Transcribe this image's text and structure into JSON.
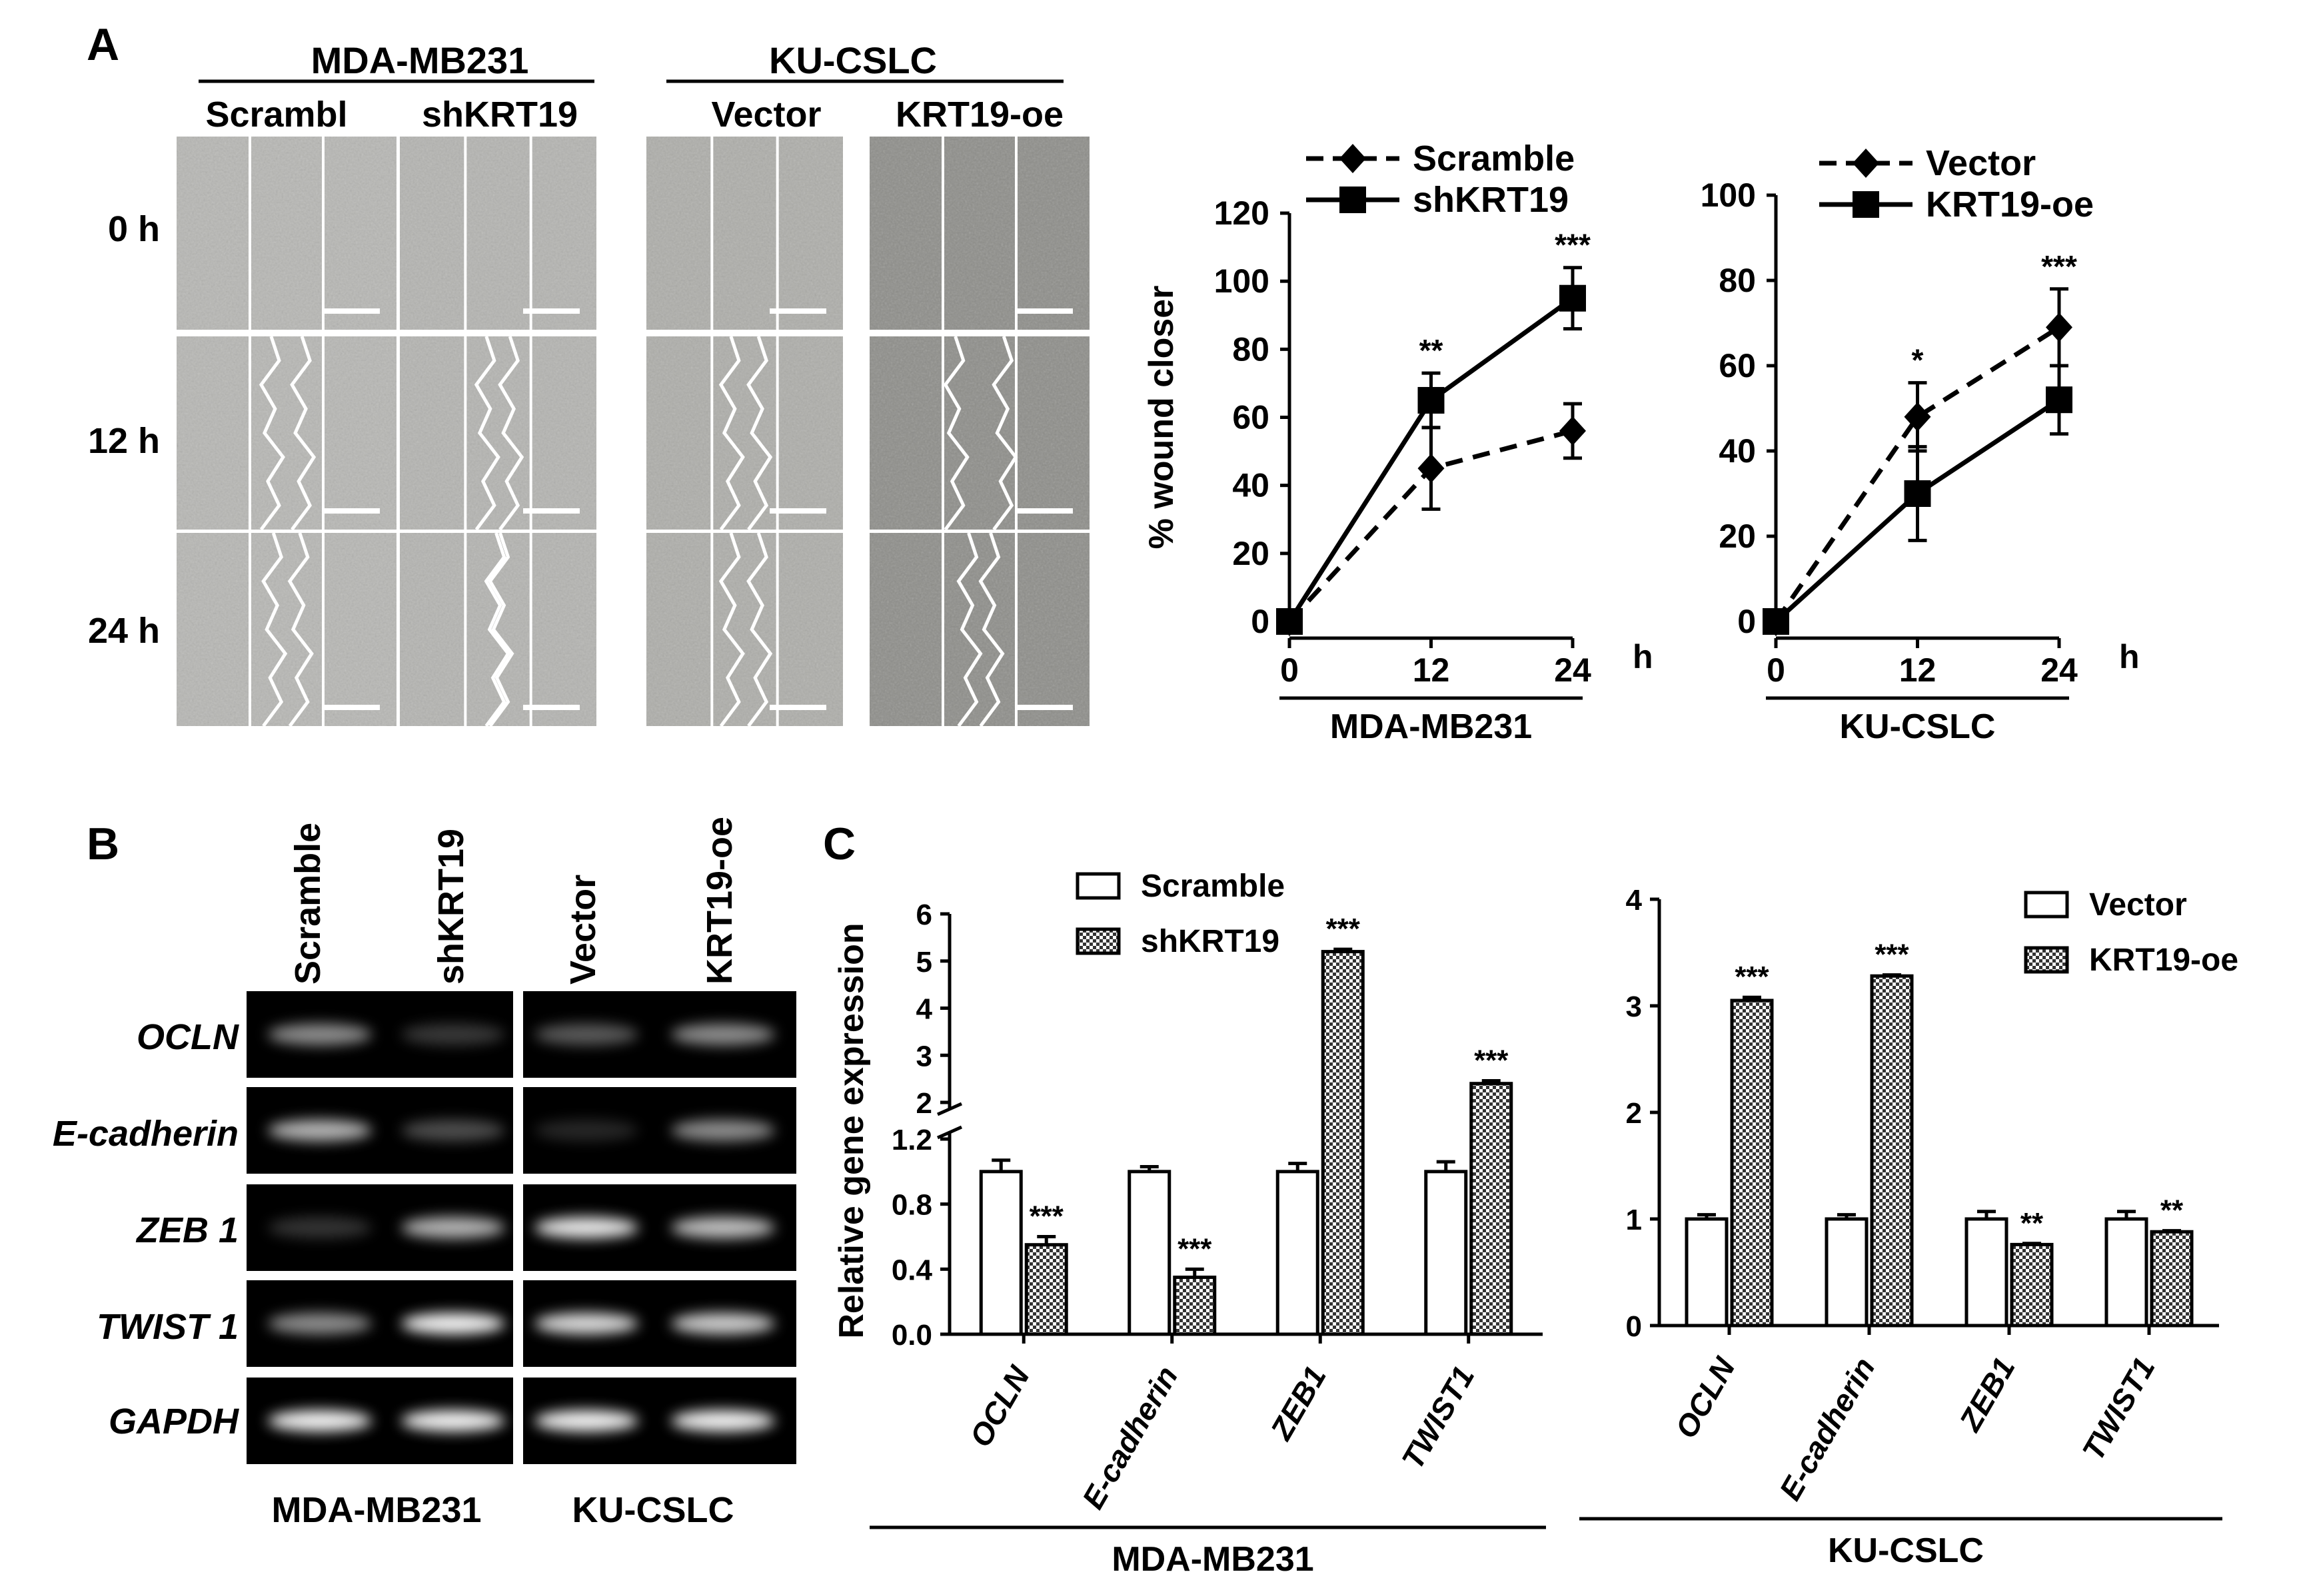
{
  "panels": {
    "A": {
      "letter": "A",
      "groups": [
        {
          "name": "MDA-MB231",
          "conditions": [
            "Scrambl",
            "shKRT19"
          ]
        },
        {
          "name": "KU-CSLC",
          "conditions": [
            "Vector",
            "KRT19-oe"
          ]
        }
      ],
      "timepoints": [
        "0 h",
        "12 h",
        "24 h"
      ]
    },
    "B": {
      "letter": "B",
      "lanes": [
        "Scramble",
        "shKRT19",
        "Vector",
        "KRT19-oe"
      ],
      "genes": [
        "OCLN",
        "E-cadherin",
        "ZEB 1",
        "TWIST 1",
        "GAPDH"
      ],
      "groups": [
        "MDA-MB231",
        "KU-CSLC"
      ],
      "bands": [
        [
          0.55,
          0.22,
          0.35,
          0.55
        ],
        [
          0.7,
          0.3,
          0.15,
          0.55
        ],
        [
          0.2,
          0.7,
          0.9,
          0.75
        ],
        [
          0.55,
          0.95,
          0.85,
          0.8
        ],
        [
          0.95,
          0.95,
          0.95,
          0.95
        ]
      ]
    },
    "C": {
      "letter": "C"
    }
  },
  "chart_data": [
    {
      "type": "line",
      "title": "",
      "xlabel": "MDA-MB231",
      "x_unit": "h",
      "ylabel": "% wound closer",
      "x": [
        0,
        12,
        24
      ],
      "ylim": [
        0,
        120
      ],
      "yticks": [
        0,
        20,
        40,
        60,
        80,
        100,
        120
      ],
      "legend": "top",
      "series": [
        {
          "name": "Scramble",
          "marker": "diamond",
          "dash": "dashed",
          "values": [
            0,
            45,
            56
          ],
          "errors": [
            0,
            12,
            8
          ]
        },
        {
          "name": "shKRT19",
          "marker": "square",
          "dash": "solid",
          "values": [
            0,
            65,
            95
          ],
          "errors": [
            0,
            8,
            9
          ]
        }
      ],
      "annotations": [
        {
          "x": 12,
          "text": "**"
        },
        {
          "x": 24,
          "text": "***"
        }
      ]
    },
    {
      "type": "line",
      "title": "",
      "xlabel": "KU-CSLC",
      "x_unit": "h",
      "ylabel": "",
      "x": [
        0,
        12,
        24
      ],
      "ylim": [
        0,
        100
      ],
      "yticks": [
        0,
        20,
        40,
        60,
        80,
        100
      ],
      "legend": "top",
      "series": [
        {
          "name": "Vector",
          "marker": "diamond",
          "dash": "dashed",
          "values": [
            0,
            48,
            69
          ],
          "errors": [
            0,
            8,
            9
          ]
        },
        {
          "name": "KRT19-oe",
          "marker": "square",
          "dash": "solid",
          "values": [
            0,
            30,
            52
          ],
          "errors": [
            0,
            11,
            8
          ]
        }
      ],
      "annotations": [
        {
          "x": 12,
          "text": "*"
        },
        {
          "x": 24,
          "text": "***"
        }
      ]
    },
    {
      "type": "bar",
      "title": "",
      "xlabel": "MDA-MB231",
      "ylabel": "Relative gene expression",
      "categories": [
        "OCLN",
        "E-cadherin",
        "ZEB1",
        "TWIST1"
      ],
      "ylim": [
        0,
        6
      ],
      "axis_break": [
        1.2,
        2
      ],
      "yticks_lower": [
        0.0,
        0.4,
        0.8,
        1.2
      ],
      "yticks_upper": [
        2,
        3,
        4,
        5,
        6
      ],
      "legend": "top-left",
      "series": [
        {
          "name": "Scramble",
          "pattern": "open",
          "values": [
            1.0,
            1.0,
            1.0,
            1.0
          ],
          "errors": [
            0.07,
            0.03,
            0.05,
            0.06
          ]
        },
        {
          "name": "shKRT19",
          "pattern": "checkered",
          "values": [
            0.55,
            0.35,
            5.2,
            2.4
          ],
          "errors": [
            0.05,
            0.05,
            0.05,
            0.06
          ]
        }
      ],
      "annotations": [
        "***",
        "***",
        "***",
        "***"
      ]
    },
    {
      "type": "bar",
      "title": "",
      "xlabel": "KU-CSLC",
      "ylabel": "",
      "categories": [
        "OCLN",
        "E-cadherin",
        "ZEB1",
        "TWIST1"
      ],
      "ylim": [
        0,
        4
      ],
      "yticks": [
        0,
        1,
        2,
        3,
        4
      ],
      "legend": "top-right",
      "series": [
        {
          "name": "Vector",
          "pattern": "open",
          "values": [
            1.0,
            1.0,
            1.0,
            1.0
          ],
          "errors": [
            0.04,
            0.04,
            0.07,
            0.07
          ]
        },
        {
          "name": "KRT19-oe",
          "pattern": "checkered",
          "values": [
            3.05,
            3.28,
            0.76,
            0.88
          ],
          "errors": [
            0.03,
            0.01,
            0.01,
            0.01
          ]
        }
      ],
      "annotations": [
        "***",
        "***",
        "**",
        "**"
      ]
    }
  ]
}
